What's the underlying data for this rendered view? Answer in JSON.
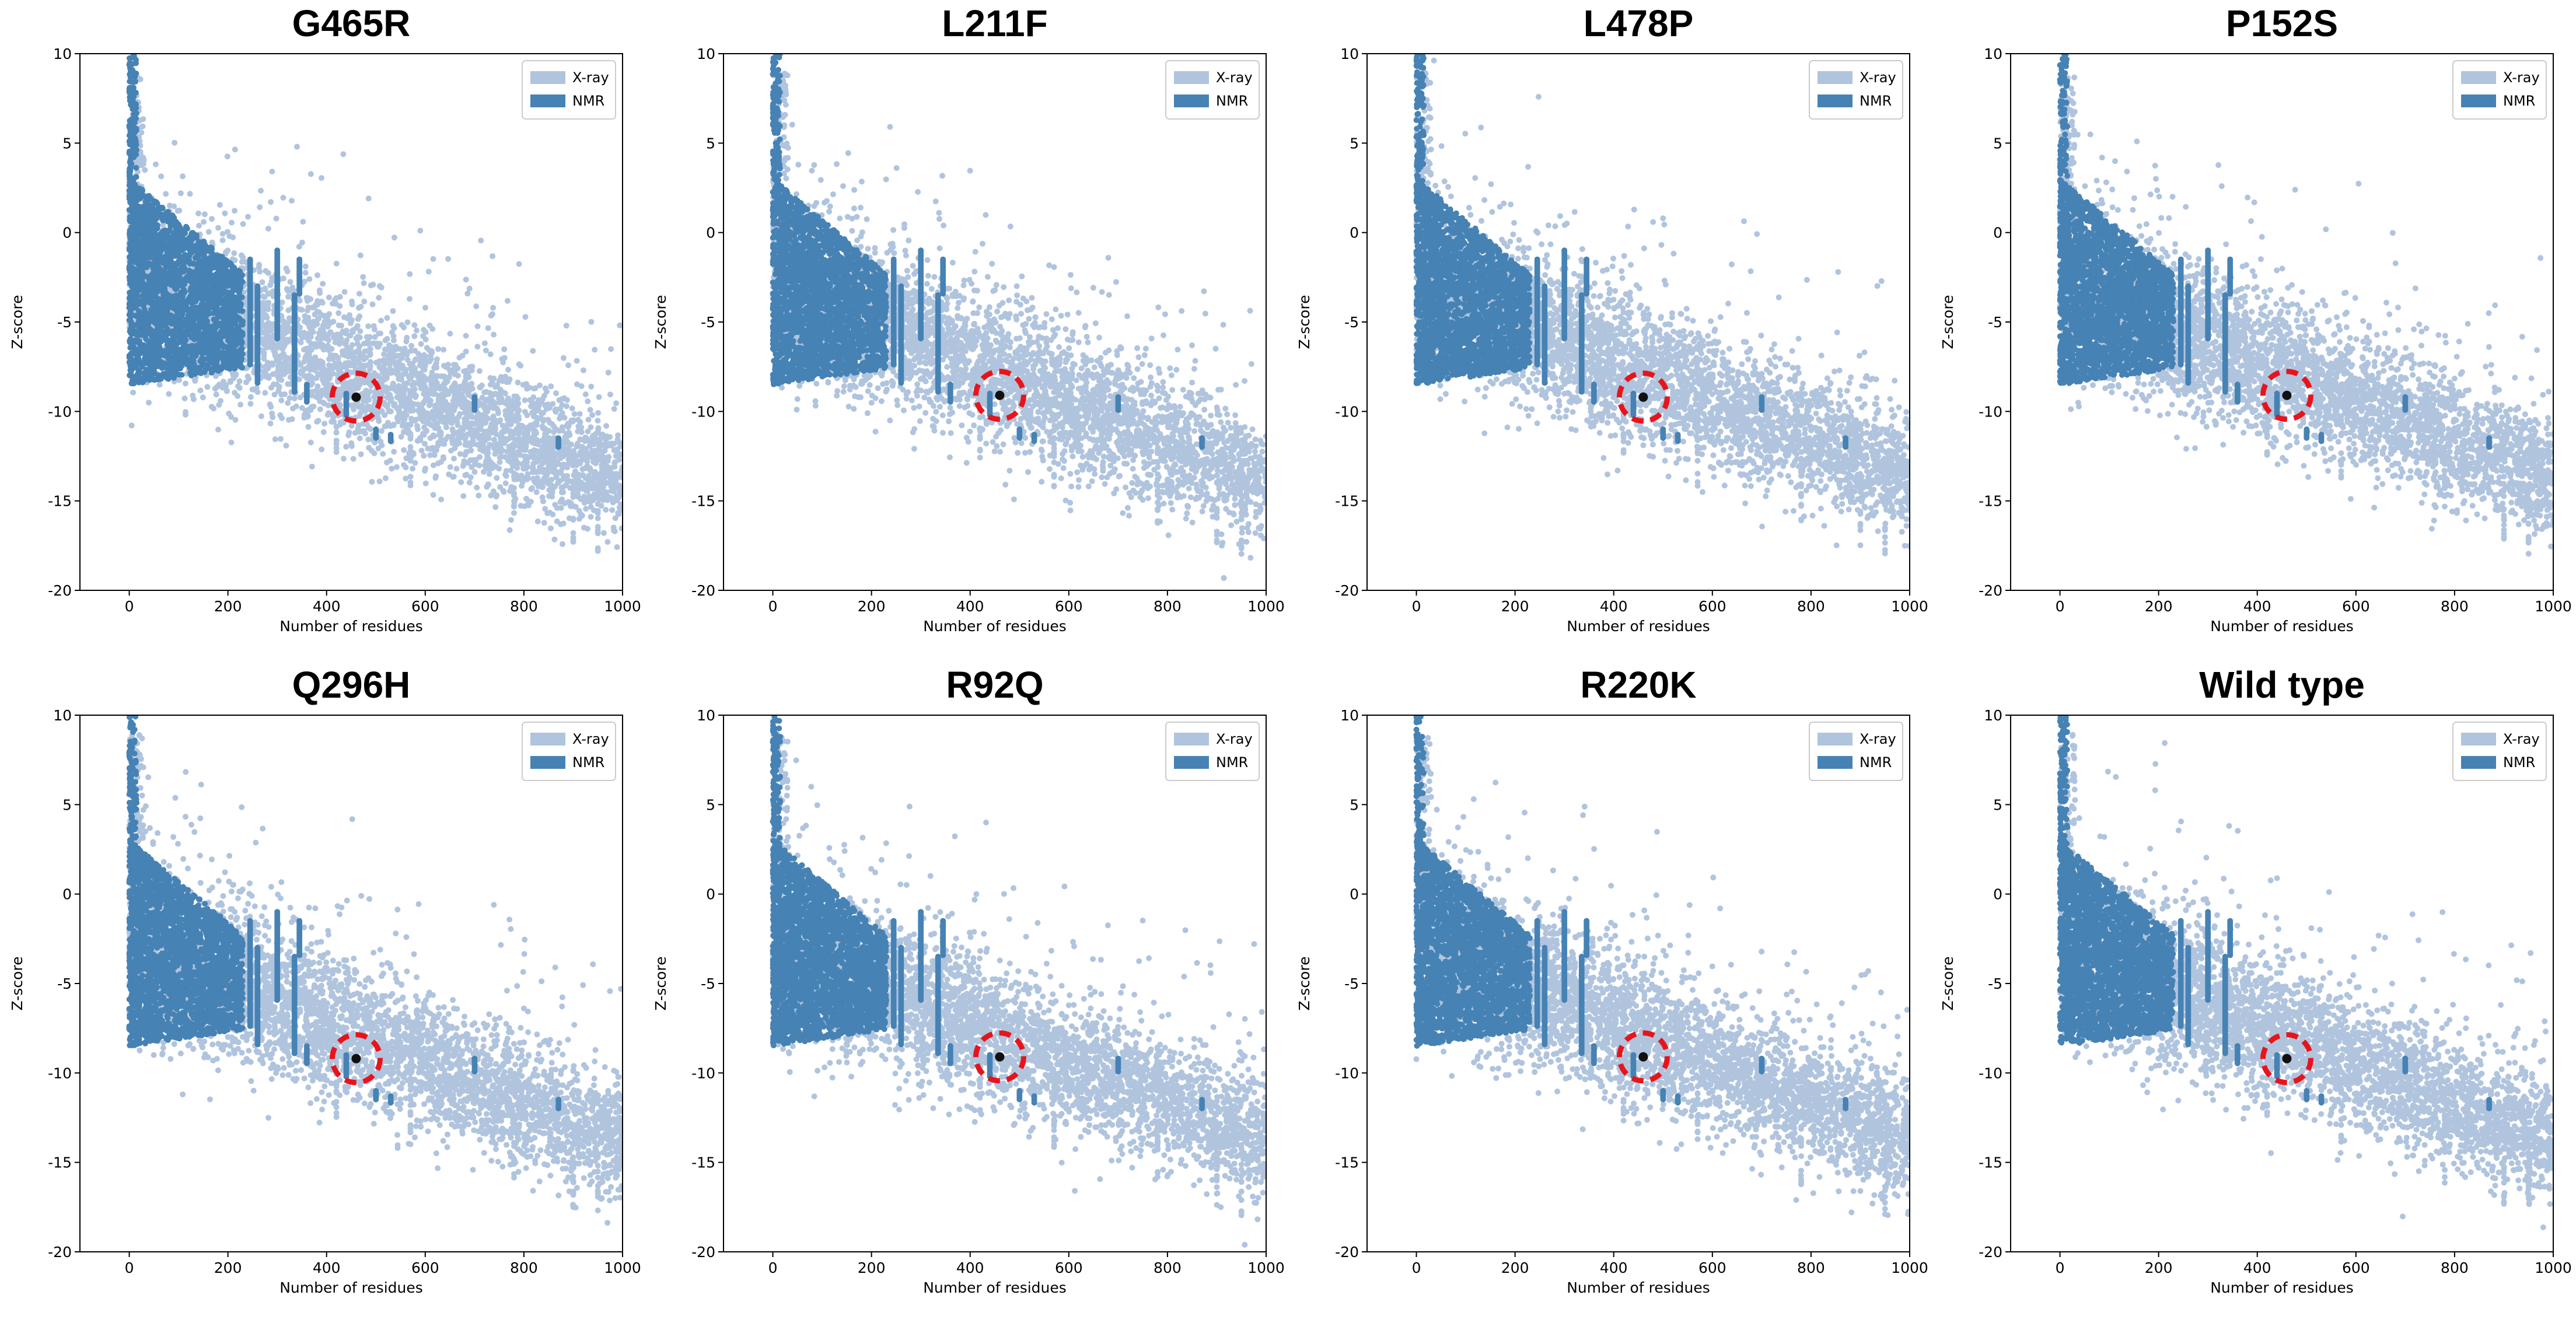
{
  "colors": {
    "xray": "#b0c4de",
    "nmr": "#4682b4",
    "highlight_point": "#111111",
    "highlight_circle": "#e8141b"
  },
  "chart_data": [
    {
      "type": "scatter",
      "title": "G465R",
      "xlabel": "Number of residues",
      "ylabel": "Z-score",
      "xlim": [
        -100,
        1000
      ],
      "ylim": [
        -20,
        10
      ],
      "xticks": [
        0,
        200,
        400,
        600,
        800,
        1000
      ],
      "yticks": [
        10,
        5,
        0,
        -5,
        -10,
        -15,
        -20
      ],
      "legend": {
        "location": "top-right",
        "entries": [
          "X-ray",
          "NMR"
        ]
      },
      "series": [
        {
          "name": "X-ray",
          "description": "dense cloud of reference PDB structures, roughly 0-1000 residues"
        },
        {
          "name": "NMR",
          "description": "dense cloud of reference PDB structures, mostly below 350 residues"
        }
      ],
      "highlight": {
        "x": 460,
        "y": -9.2
      }
    },
    {
      "type": "scatter",
      "title": "L211F",
      "xlabel": "Number of residues",
      "ylabel": "Z-score",
      "xlim": [
        -100,
        1000
      ],
      "ylim": [
        -20,
        10
      ],
      "xticks": [
        0,
        200,
        400,
        600,
        800,
        1000
      ],
      "yticks": [
        10,
        5,
        0,
        -5,
        -10,
        -15,
        -20
      ],
      "legend": {
        "location": "top-right",
        "entries": [
          "X-ray",
          "NMR"
        ]
      },
      "series": [
        {
          "name": "X-ray",
          "description": "dense cloud of reference PDB structures, roughly 0-1000 residues"
        },
        {
          "name": "NMR",
          "description": "dense cloud of reference PDB structures, mostly below 350 residues"
        }
      ],
      "highlight": {
        "x": 460,
        "y": -9.1
      }
    },
    {
      "type": "scatter",
      "title": "L478P",
      "xlabel": "Number of residues",
      "ylabel": "Z-score",
      "xlim": [
        -100,
        1000
      ],
      "ylim": [
        -20,
        10
      ],
      "xticks": [
        0,
        200,
        400,
        600,
        800,
        1000
      ],
      "yticks": [
        10,
        5,
        0,
        -5,
        -10,
        -15,
        -20
      ],
      "legend": {
        "location": "top-right",
        "entries": [
          "X-ray",
          "NMR"
        ]
      },
      "series": [
        {
          "name": "X-ray",
          "description": "dense cloud of reference PDB structures, roughly 0-1000 residues"
        },
        {
          "name": "NMR",
          "description": "dense cloud of reference PDB structures, mostly below 350 residues"
        }
      ],
      "highlight": {
        "x": 460,
        "y": -9.2
      }
    },
    {
      "type": "scatter",
      "title": "P152S",
      "xlabel": "Number of residues",
      "ylabel": "Z-score",
      "xlim": [
        -100,
        1000
      ],
      "ylim": [
        -20,
        10
      ],
      "xticks": [
        0,
        200,
        400,
        600,
        800,
        1000
      ],
      "yticks": [
        10,
        5,
        0,
        -5,
        -10,
        -15,
        -20
      ],
      "legend": {
        "location": "top-right",
        "entries": [
          "X-ray",
          "NMR"
        ]
      },
      "series": [
        {
          "name": "X-ray",
          "description": "dense cloud of reference PDB structures, roughly 0-1000 residues"
        },
        {
          "name": "NMR",
          "description": "dense cloud of reference PDB structures, mostly below 350 residues"
        }
      ],
      "highlight": {
        "x": 460,
        "y": -9.1
      }
    },
    {
      "type": "scatter",
      "title": "Q296H",
      "xlabel": "Number of residues",
      "ylabel": "Z-score",
      "xlim": [
        -100,
        1000
      ],
      "ylim": [
        -20,
        10
      ],
      "xticks": [
        0,
        200,
        400,
        600,
        800,
        1000
      ],
      "yticks": [
        10,
        5,
        0,
        -5,
        -10,
        -15,
        -20
      ],
      "legend": {
        "location": "top-right",
        "entries": [
          "X-ray",
          "NMR"
        ]
      },
      "series": [
        {
          "name": "X-ray",
          "description": "dense cloud of reference PDB structures, roughly 0-1000 residues"
        },
        {
          "name": "NMR",
          "description": "dense cloud of reference PDB structures, mostly below 350 residues"
        }
      ],
      "highlight": {
        "x": 460,
        "y": -9.2
      }
    },
    {
      "type": "scatter",
      "title": "R92Q",
      "xlabel": "Number of residues",
      "ylabel": "Z-score",
      "xlim": [
        -100,
        1000
      ],
      "ylim": [
        -20,
        10
      ],
      "xticks": [
        0,
        200,
        400,
        600,
        800,
        1000
      ],
      "yticks": [
        10,
        5,
        0,
        -5,
        -10,
        -15,
        -20
      ],
      "legend": {
        "location": "top-right",
        "entries": [
          "X-ray",
          "NMR"
        ]
      },
      "series": [
        {
          "name": "X-ray",
          "description": "dense cloud of reference PDB structures, roughly 0-1000 residues"
        },
        {
          "name": "NMR",
          "description": "dense cloud of reference PDB structures, mostly below 350 residues"
        }
      ],
      "highlight": {
        "x": 460,
        "y": -9.1
      }
    },
    {
      "type": "scatter",
      "title": "R220K",
      "xlabel": "Number of residues",
      "ylabel": "Z-score",
      "xlim": [
        -100,
        1000
      ],
      "ylim": [
        -20,
        10
      ],
      "xticks": [
        0,
        200,
        400,
        600,
        800,
        1000
      ],
      "yticks": [
        10,
        5,
        0,
        -5,
        -10,
        -15,
        -20
      ],
      "legend": {
        "location": "top-right",
        "entries": [
          "X-ray",
          "NMR"
        ]
      },
      "series": [
        {
          "name": "X-ray",
          "description": "dense cloud of reference PDB structures, roughly 0-1000 residues"
        },
        {
          "name": "NMR",
          "description": "dense cloud of reference PDB structures, mostly below 350 residues"
        }
      ],
      "highlight": {
        "x": 460,
        "y": -9.1
      }
    },
    {
      "type": "scatter",
      "title": "Wild type",
      "xlabel": "Number of residues",
      "ylabel": "Z-score",
      "xlim": [
        -100,
        1000
      ],
      "ylim": [
        -20,
        10
      ],
      "xticks": [
        0,
        200,
        400,
        600,
        800,
        1000
      ],
      "yticks": [
        10,
        5,
        0,
        -5,
        -10,
        -15,
        -20
      ],
      "legend": {
        "location": "top-right",
        "entries": [
          "X-ray",
          "NMR"
        ]
      },
      "series": [
        {
          "name": "X-ray",
          "description": "dense cloud of reference PDB structures, roughly 0-1000 residues"
        },
        {
          "name": "NMR",
          "description": "dense cloud of reference PDB structures, mostly below 350 residues"
        }
      ],
      "highlight": {
        "x": 460,
        "y": -9.2
      }
    }
  ]
}
